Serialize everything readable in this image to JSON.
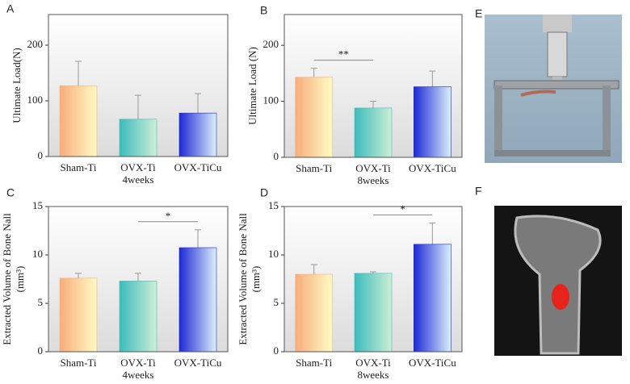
{
  "chart_data": [
    {
      "type": "bar",
      "panel": "A",
      "ylabel": [
        "Ultimate Load(N)"
      ],
      "xlabel": "4weeks",
      "categories": [
        "Sham-Ti",
        "OVX-Ti",
        "OVX-TiCu"
      ],
      "values": [
        127,
        67,
        78
      ],
      "errors": [
        44,
        43,
        35
      ],
      "colors": [
        [
          "#f7ad7c",
          "#fffbc4"
        ],
        [
          "#3cbcbc",
          "#cdeed6"
        ],
        [
          "#1e28d6",
          "#daf0fb"
        ]
      ],
      "ylim": [
        0,
        255
      ],
      "yticks": [
        0,
        100,
        200
      ],
      "annotations": []
    },
    {
      "type": "bar",
      "panel": "B",
      "ylabel": [
        "Ultimate Load (N)"
      ],
      "xlabel": "8weeks",
      "categories": [
        "Sham-Ti",
        "OVX-Ti",
        "OVX-TiCu"
      ],
      "values": [
        143,
        88,
        126
      ],
      "errors": [
        16,
        12,
        28
      ],
      "colors": [
        [
          "#f7ad7c",
          "#fffbc4"
        ],
        [
          "#3cbcbc",
          "#cdeed6"
        ],
        [
          "#1e28d6",
          "#daf0fb"
        ]
      ],
      "ylim": [
        0,
        255
      ],
      "yticks": [
        0,
        100,
        200
      ],
      "annotations": [
        {
          "text": "**",
          "between": [
            0,
            1
          ]
        }
      ]
    },
    {
      "type": "bar",
      "panel": "C",
      "ylabel": [
        "Extracted Volume of Bone Nall",
        "(mm³)"
      ],
      "xlabel": "4weeks",
      "categories": [
        "Sham-Ti",
        "OVX-Ti",
        "OVX-TiCu"
      ],
      "values": [
        7.6,
        7.3,
        10.75
      ],
      "errors": [
        0.5,
        0.8,
        1.85
      ],
      "colors": [
        [
          "#f7ad7c",
          "#fffbc4"
        ],
        [
          "#3cbcbc",
          "#cdeed6"
        ],
        [
          "#1e28d6",
          "#daf0fb"
        ]
      ],
      "ylim": [
        0,
        15
      ],
      "yticks": [
        0,
        5,
        10,
        15
      ],
      "annotations": [
        {
          "text": "*",
          "between": [
            1,
            2
          ]
        }
      ]
    },
    {
      "type": "bar",
      "panel": "D",
      "ylabel": [
        "Extracted Volume of Bone Nall",
        "(mm³)"
      ],
      "xlabel": "8weeks",
      "categories": [
        "Sham-Ti",
        "OVX-Ti",
        "OVX-TiCu"
      ],
      "values": [
        8.0,
        8.1,
        11.1
      ],
      "errors": [
        1.0,
        0.15,
        2.2
      ],
      "colors": [
        [
          "#f7ad7c",
          "#fffbc4"
        ],
        [
          "#3cbcbc",
          "#cdeed6"
        ],
        [
          "#1e28d6",
          "#daf0fb"
        ]
      ],
      "ylim": [
        0,
        15
      ],
      "yticks": [
        0,
        5,
        10,
        15
      ],
      "annotations": [
        {
          "text": "*",
          "between": [
            1,
            2
          ]
        }
      ]
    }
  ],
  "images": [
    {
      "panel": "E"
    },
    {
      "panel": "F"
    }
  ]
}
